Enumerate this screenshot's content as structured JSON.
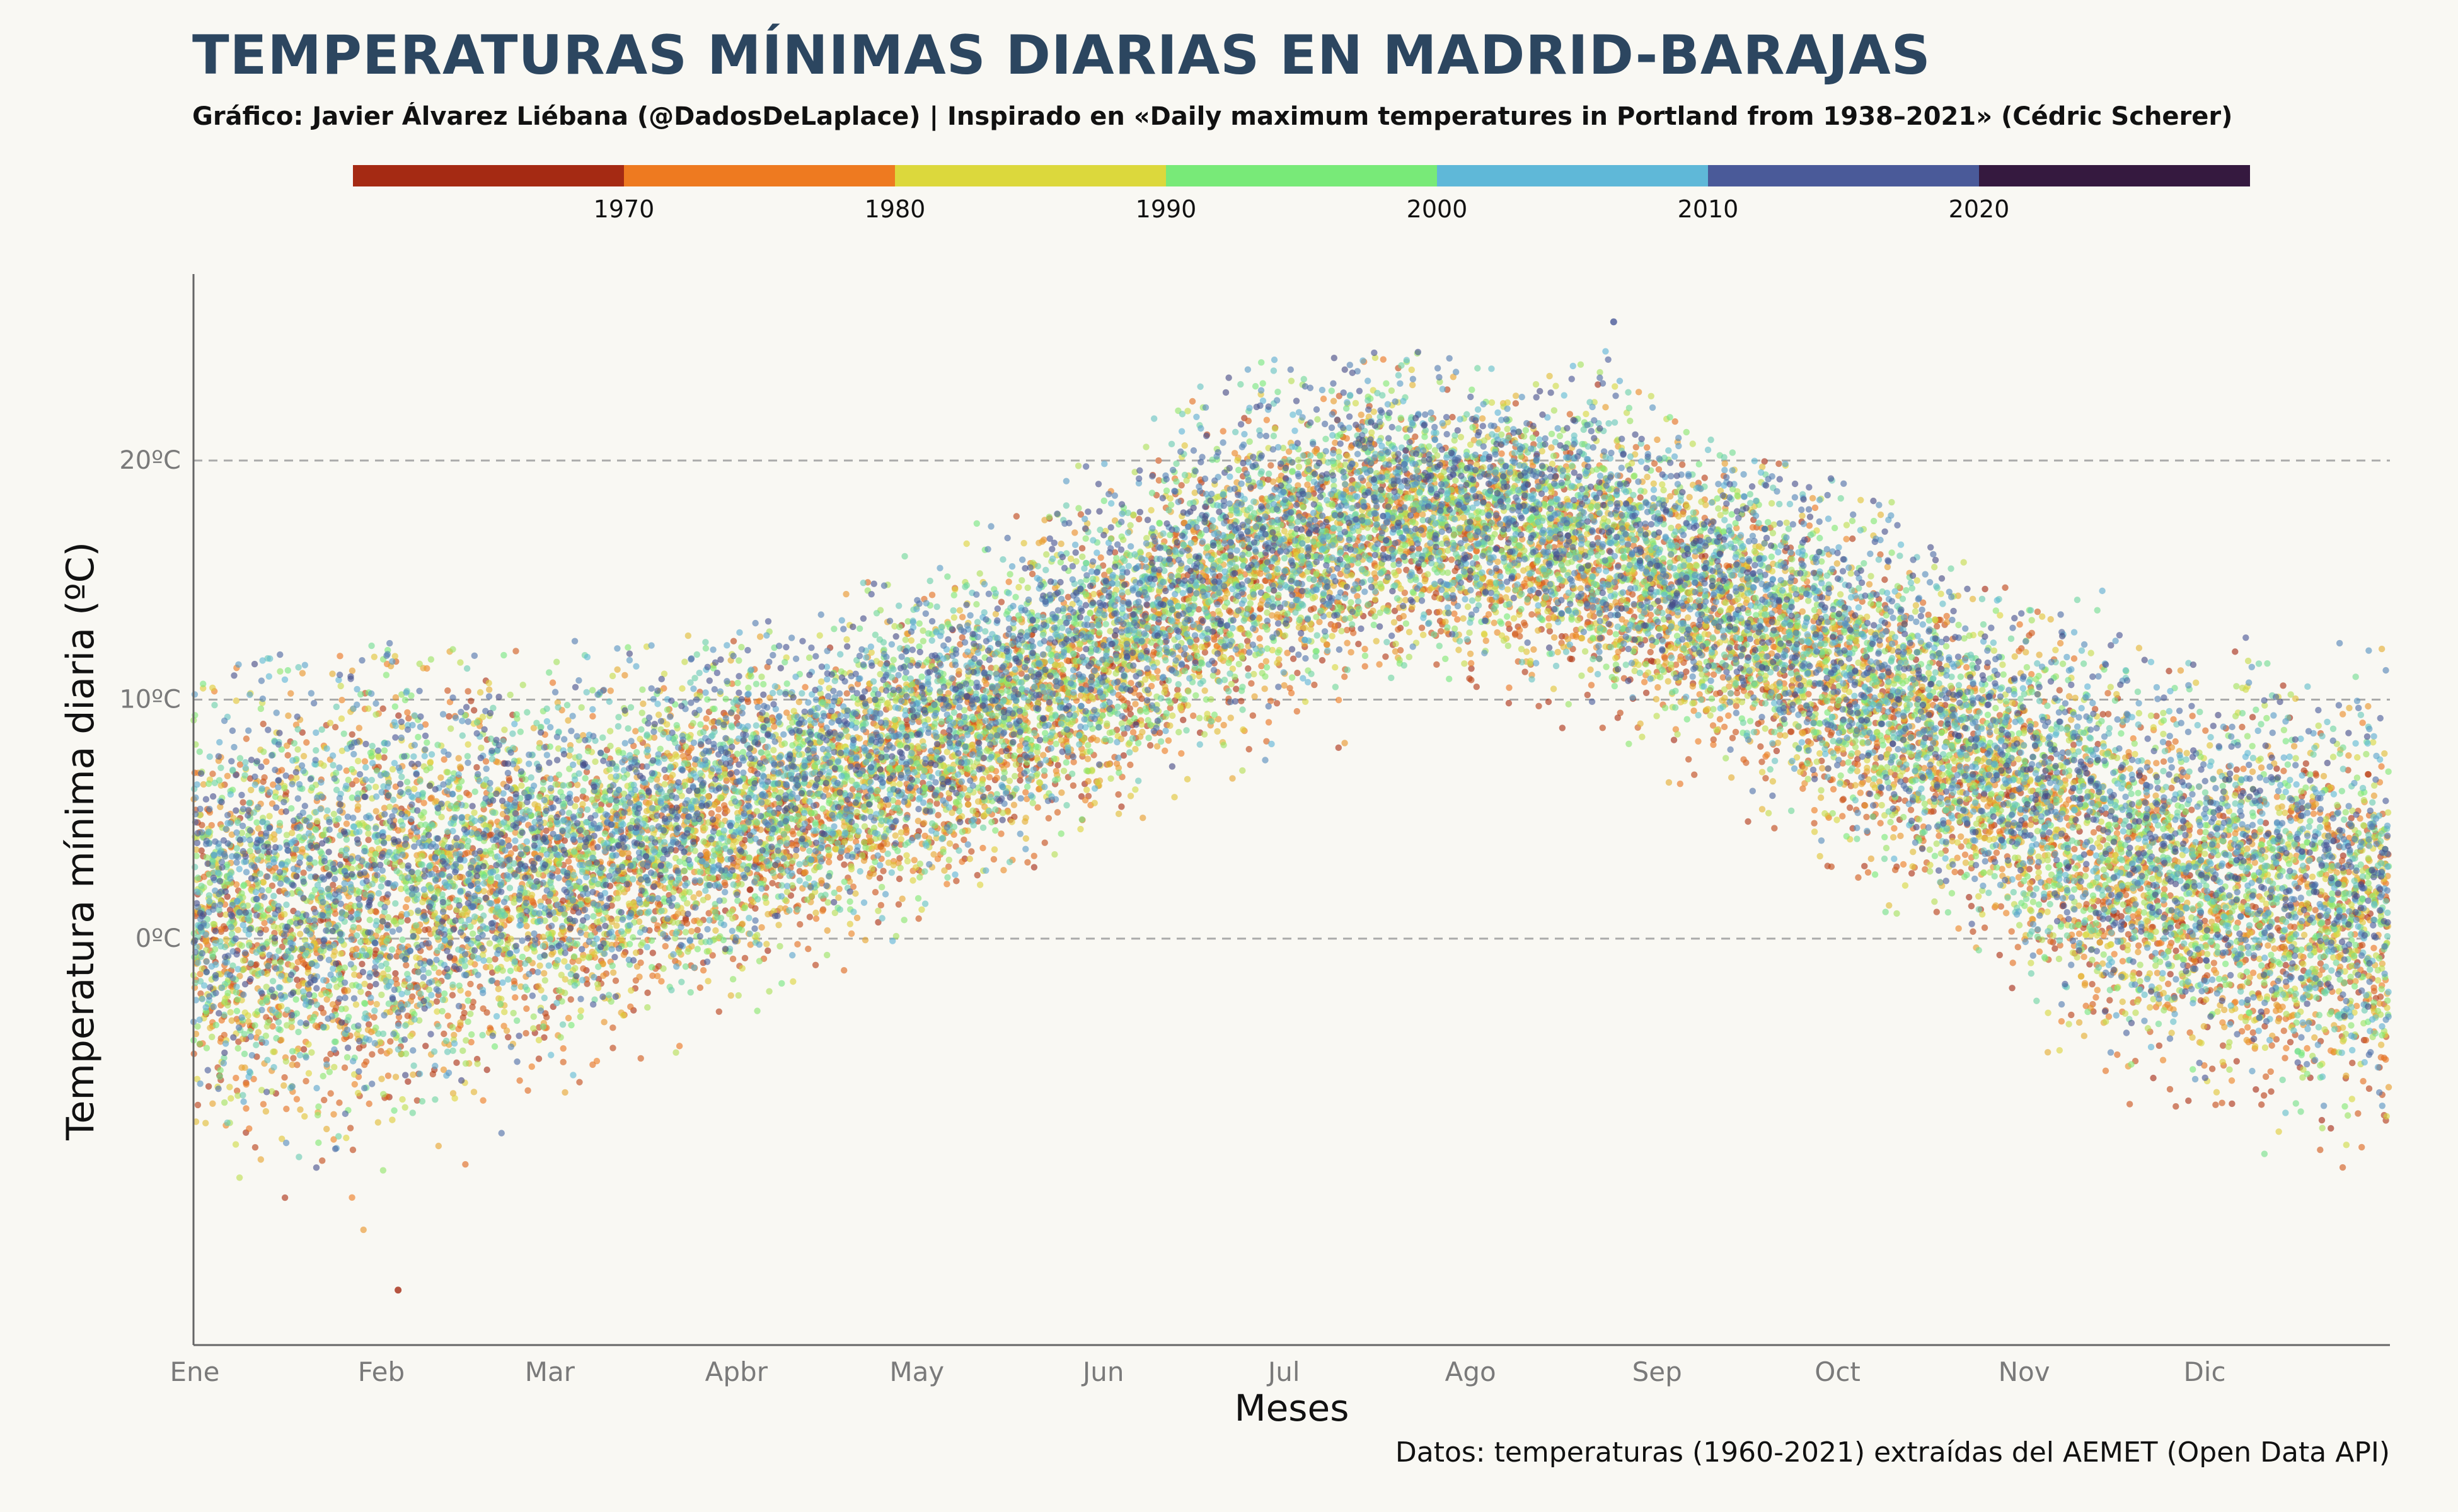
{
  "title": "TEMPERATURAS MÍNIMAS DIARIAS EN MADRID-BARAJAS",
  "subtitle": "Gráfico: Javier Álvarez Liébana (@DadosDeLaplace) | Inspirado en «Daily maximum temperatures in Portland from 1938–2021» (Cédric Scherer)",
  "caption": "Datos: temperaturas (1960-2021) extraídas del AEMET (Open Data API)",
  "legend": {
    "colors": [
      "#a52a13",
      "#ee7a20",
      "#dcd83c",
      "#78ea78",
      "#5fb8d8",
      "#4a5a99",
      "#35193f"
    ],
    "labels": [
      "1970",
      "1980",
      "1990",
      "2000",
      "2010",
      "2020"
    ],
    "range": [
      1960,
      2030
    ]
  },
  "chart_data": {
    "type": "scatter",
    "xlabel": "Meses",
    "ylabel": "Temperatura mínima diaria (ºC)",
    "x_ticks": [
      "Ene",
      "Feb",
      "Mar",
      "Apbr",
      "May",
      "Jun",
      "Jul",
      "Ago",
      "Sep",
      "Oct",
      "Nov",
      "Dic"
    ],
    "x_tick_days": [
      0,
      31,
      59,
      90,
      120,
      151,
      181,
      212,
      243,
      273,
      304,
      334
    ],
    "x_range_days": [
      0,
      365
    ],
    "y_ticks": [
      0,
      10,
      20
    ],
    "y_tick_labels": [
      "0ºC",
      "10ºC",
      "20ºC"
    ],
    "ylim": [
      -17,
      27.8
    ],
    "grid": "horizontal dashed",
    "color_by": "year",
    "years": [
      1960,
      2021
    ],
    "seasonal_profile": {
      "day_of_year": [
        0,
        15,
        31,
        46,
        59,
        74,
        90,
        105,
        120,
        135,
        151,
        166,
        181,
        196,
        212,
        227,
        243,
        258,
        273,
        288,
        304,
        319,
        334,
        349,
        365
      ],
      "mean_min_temp": [
        1.2,
        1.0,
        1.6,
        2.4,
        3.0,
        3.9,
        5.2,
        6.4,
        8.1,
        9.8,
        12.0,
        14.5,
        16.4,
        17.6,
        17.5,
        16.8,
        15.2,
        13.5,
        11.2,
        8.9,
        6.0,
        3.6,
        2.2,
        1.5,
        1.0
      ],
      "approx_max": [
        11,
        12,
        12.8,
        12.3,
        12.5,
        12.5,
        13,
        14,
        17,
        18.5,
        20.5,
        23.2,
        24.5,
        24.8,
        24.2,
        25.8,
        23,
        20.2,
        19.5,
        17.5,
        14.5,
        15,
        12.8,
        13,
        12
      ],
      "approx_min": [
        -12,
        -13.5,
        -14.7,
        -9.5,
        -8,
        -5.5,
        -5.6,
        -2,
        0,
        2.5,
        4,
        5.2,
        7,
        8.5,
        9.5,
        8.8,
        7,
        3.5,
        1.5,
        -1,
        -4.5,
        -7,
        -7.5,
        -10.5,
        -9
      ]
    },
    "extremes": {
      "lowest": {
        "day_of_year": 34,
        "value": -14.7
      },
      "highest": {
        "day_of_year": 236,
        "value": 25.8
      }
    }
  }
}
